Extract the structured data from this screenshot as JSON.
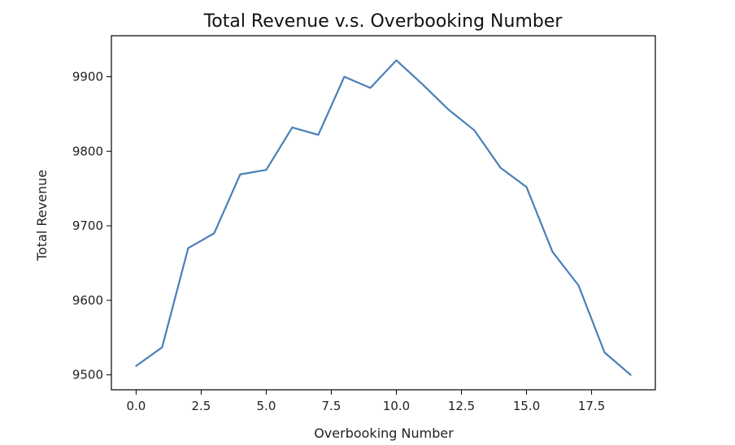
{
  "chart_data": {
    "type": "line",
    "title": "Total Revenue v.s. Overbooking Number",
    "xlabel": "Overbooking Number",
    "ylabel": "Total Revenue",
    "xlim": [
      -0.95,
      19.95
    ],
    "ylim": [
      9480,
      9955
    ],
    "xticks": [
      0.0,
      2.5,
      5.0,
      7.5,
      10.0,
      12.5,
      15.0,
      17.5
    ],
    "xtick_labels": [
      "0.0",
      "2.5",
      "5.0",
      "7.5",
      "10.0",
      "12.5",
      "15.0",
      "17.5"
    ],
    "yticks": [
      9500,
      9600,
      9700,
      9800,
      9900
    ],
    "ytick_labels": [
      "9500",
      "9600",
      "9700",
      "9800",
      "9900"
    ],
    "grid": false,
    "series": [
      {
        "color": "#4a7fb8",
        "x": [
          0,
          1,
          2,
          3,
          4,
          5,
          6,
          7,
          8,
          9,
          10,
          11,
          12,
          13,
          14,
          15,
          16,
          17,
          18,
          19
        ],
        "y": [
          9512,
          9537,
          9670,
          9690,
          9769,
          9775,
          9832,
          9822,
          9900,
          9885,
          9922,
          9890,
          9856,
          9828,
          9778,
          9752,
          9665,
          9620,
          9530,
          9500
        ]
      }
    ]
  }
}
